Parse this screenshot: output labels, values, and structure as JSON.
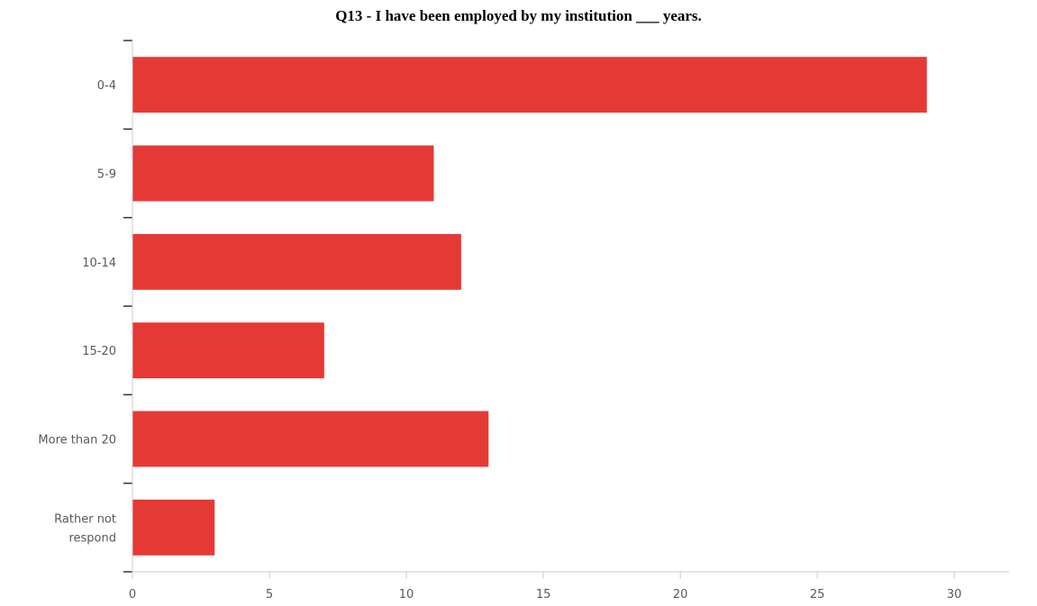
{
  "chart_data": {
    "type": "bar",
    "orientation": "horizontal",
    "title": "Q13 - I have been employed by my institution ___ years.",
    "categories": [
      "0-4",
      "5-9",
      "10-14",
      "15-20",
      "More than 20",
      "Rather not respond"
    ],
    "values": [
      29,
      11,
      12,
      7,
      13,
      3
    ],
    "xlim": [
      0,
      32
    ],
    "xticks": [
      0,
      5,
      10,
      15,
      20,
      25,
      30
    ],
    "xlabel": "",
    "ylabel": "",
    "grid": false,
    "legend": "none",
    "bar_color": "#e53935",
    "axis_color": "#cccccc",
    "tick_mark_color": "#333333"
  }
}
